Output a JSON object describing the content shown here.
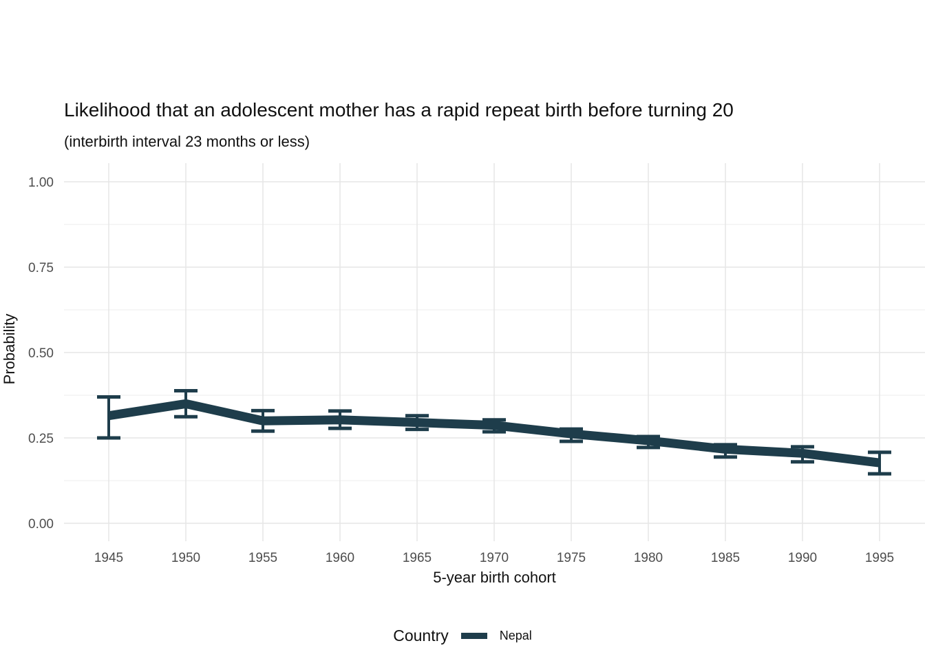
{
  "chart_data": {
    "type": "line",
    "title": "Likelihood that an adolescent mother has a rapid repeat birth before turning 20",
    "subtitle": "(interbirth interval 23 months or less)",
    "xlabel": "5-year birth cohort",
    "ylabel": "Probability",
    "x": [
      1945,
      1950,
      1955,
      1960,
      1965,
      1970,
      1975,
      1980,
      1985,
      1990,
      1995
    ],
    "xtick_labels": [
      "1945",
      "1950",
      "1955",
      "1960",
      "1965",
      "1970",
      "1975",
      "1980",
      "1985",
      "1990",
      "1995"
    ],
    "yticks": [
      0,
      0.25,
      0.5,
      0.75,
      1.0
    ],
    "ytick_labels": [
      "0.00",
      "0.25",
      "0.50",
      "0.75",
      "1.00"
    ],
    "y_minor_ticks": [
      0.125,
      0.375,
      0.625,
      0.875
    ],
    "ylim": [
      0,
      1
    ],
    "grid": "major-and-minor, light grey on white",
    "legend": {
      "title": "Country",
      "position": "bottom",
      "entries": [
        {
          "label": "Nepal",
          "color": "#1e3d4b",
          "marker": "line"
        }
      ]
    },
    "series": [
      {
        "name": "Nepal",
        "color": "#1e3d4b",
        "values": [
          0.315,
          0.35,
          0.3,
          0.303,
          0.295,
          0.287,
          0.262,
          0.242,
          0.217,
          0.205,
          0.177
        ],
        "ci_lower": [
          0.25,
          0.312,
          0.27,
          0.278,
          0.275,
          0.268,
          0.24,
          0.222,
          0.194,
          0.18,
          0.145
        ],
        "ci_upper": [
          0.37,
          0.388,
          0.33,
          0.329,
          0.315,
          0.303,
          0.276,
          0.254,
          0.23,
          0.224,
          0.208
        ]
      }
    ]
  },
  "colors": {
    "series": "#1e3d4b",
    "grid_major": "#e6e6e6",
    "grid_minor": "#f0f0f0",
    "tick_text": "#4d4d4d",
    "title_text": "#111111"
  }
}
